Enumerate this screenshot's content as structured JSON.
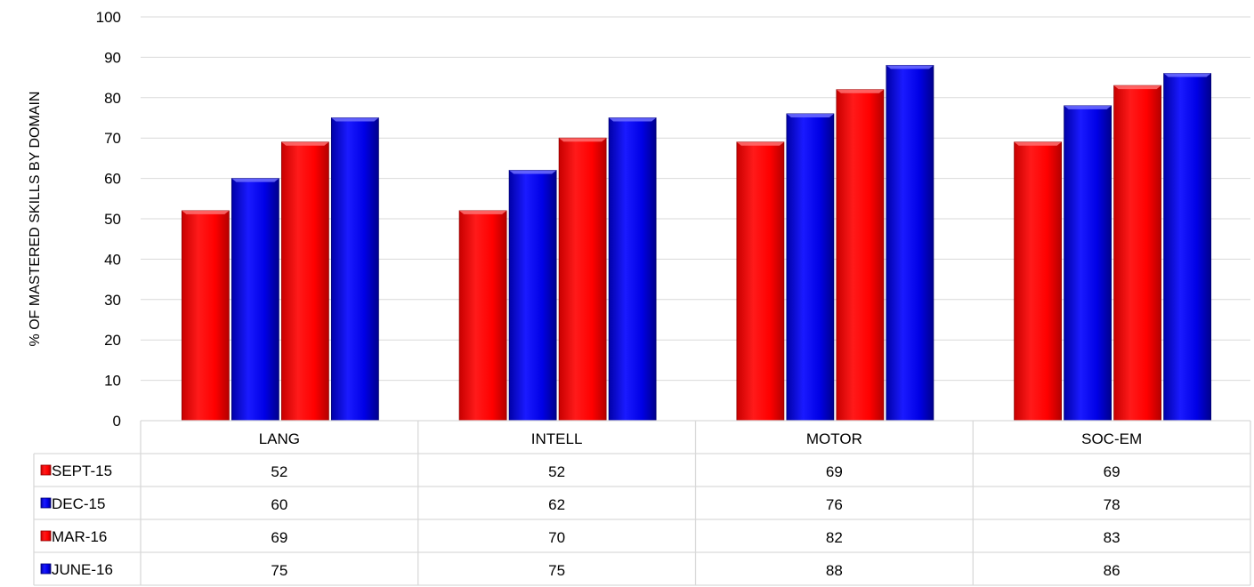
{
  "chart_data": {
    "type": "bar",
    "title": "",
    "xlabel": "",
    "ylabel": "% OF MASTERED SKILLS BY DOMAIN",
    "ylim": [
      0,
      100
    ],
    "yticks": [
      0,
      10,
      20,
      30,
      40,
      50,
      60,
      70,
      80,
      90,
      100
    ],
    "grid": true,
    "legend": "data-table",
    "categories": [
      "LANG",
      "INTELL",
      "MOTOR",
      "SOC-EM"
    ],
    "series": [
      {
        "name": "SEPT-15",
        "color": "#ff0000",
        "values": [
          52,
          52,
          69,
          69
        ]
      },
      {
        "name": "DEC-15",
        "color": "#0000e6",
        "values": [
          60,
          62,
          76,
          78
        ]
      },
      {
        "name": "MAR-16",
        "color": "#ff0000",
        "values": [
          69,
          70,
          82,
          83
        ]
      },
      {
        "name": "JUNE-16",
        "color": "#0000e6",
        "values": [
          75,
          75,
          88,
          86
        ]
      }
    ]
  }
}
